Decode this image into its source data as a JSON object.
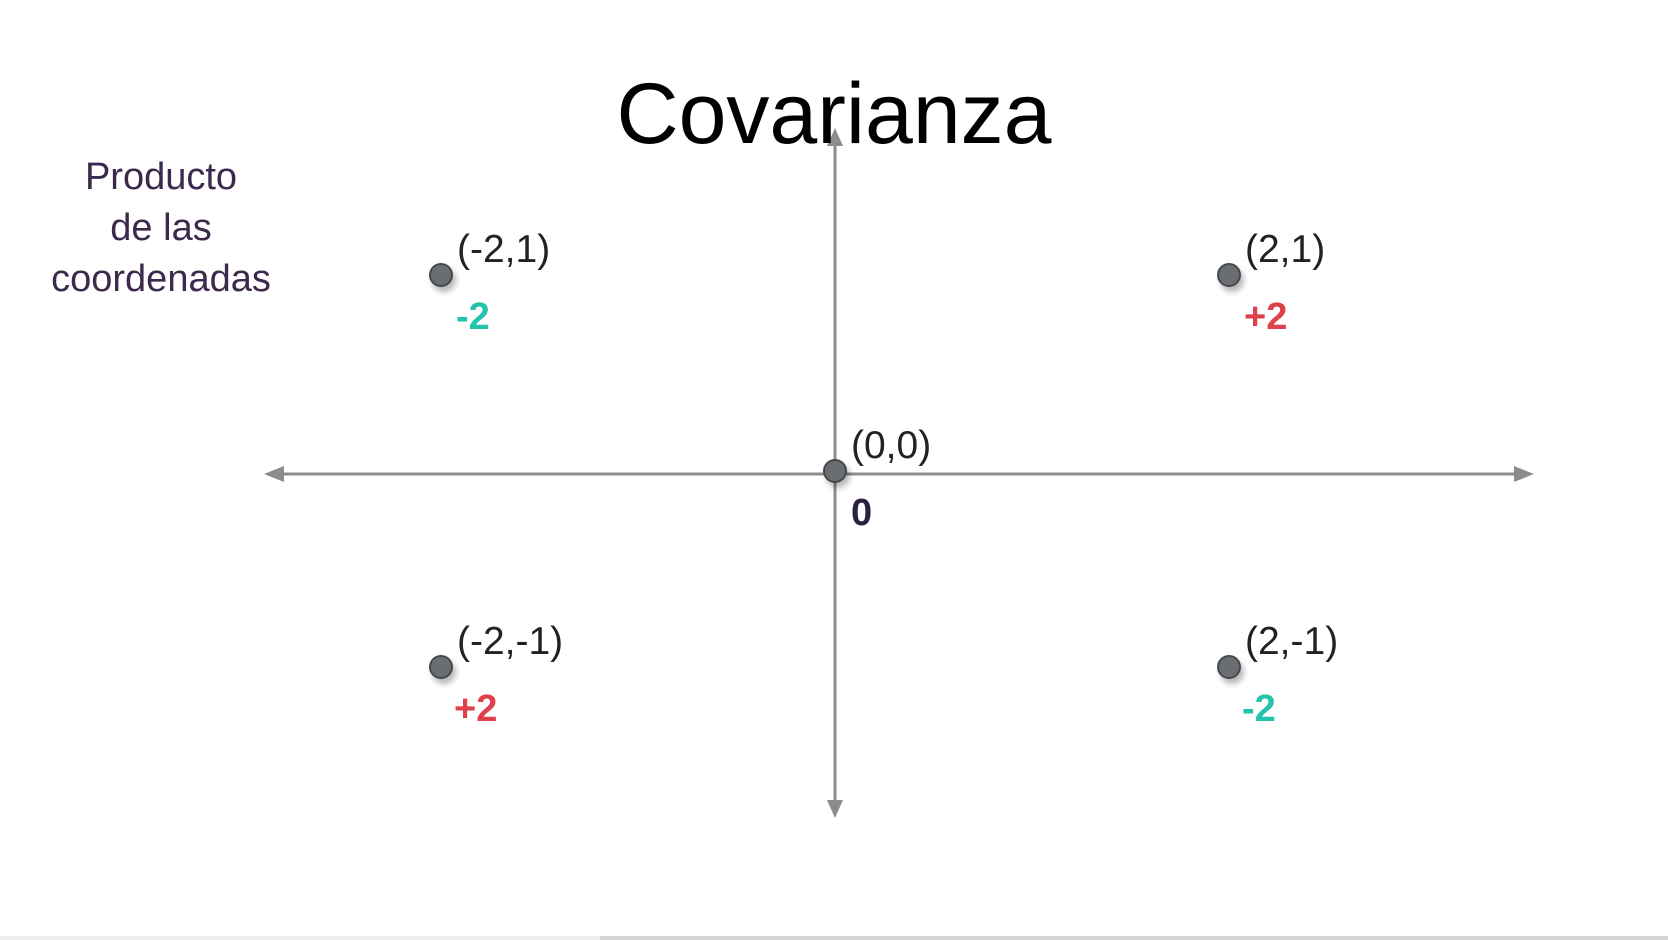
{
  "slide": {
    "title": "Covarianza",
    "side_label_lines": [
      "Producto",
      "de las",
      "coordenadas"
    ]
  },
  "colors": {
    "positive": "#e0404a",
    "negative": "#22c4ad",
    "zero": "#2e2140",
    "axis": "#8c8c8c",
    "point": "#6b6e73"
  },
  "points": [
    {
      "id": "neg-x-pos-y",
      "x": -2,
      "y": 1,
      "label": "(-2,1)",
      "product": "-2",
      "sign": "negative"
    },
    {
      "id": "pos-x-pos-y",
      "x": 2,
      "y": 1,
      "label": "(2,1)",
      "product": "+2",
      "sign": "positive"
    },
    {
      "id": "origin",
      "x": 0,
      "y": 0,
      "label": "(0,0)",
      "product": "0",
      "sign": "zero"
    },
    {
      "id": "neg-x-neg-y",
      "x": -2,
      "y": -1,
      "label": "(-2,-1)",
      "product": "+2",
      "sign": "positive"
    },
    {
      "id": "pos-x-neg-y",
      "x": 2,
      "y": -1,
      "label": "(2,-1)",
      "product": "-2",
      "sign": "negative"
    }
  ],
  "video": {
    "progress": 0.36
  }
}
